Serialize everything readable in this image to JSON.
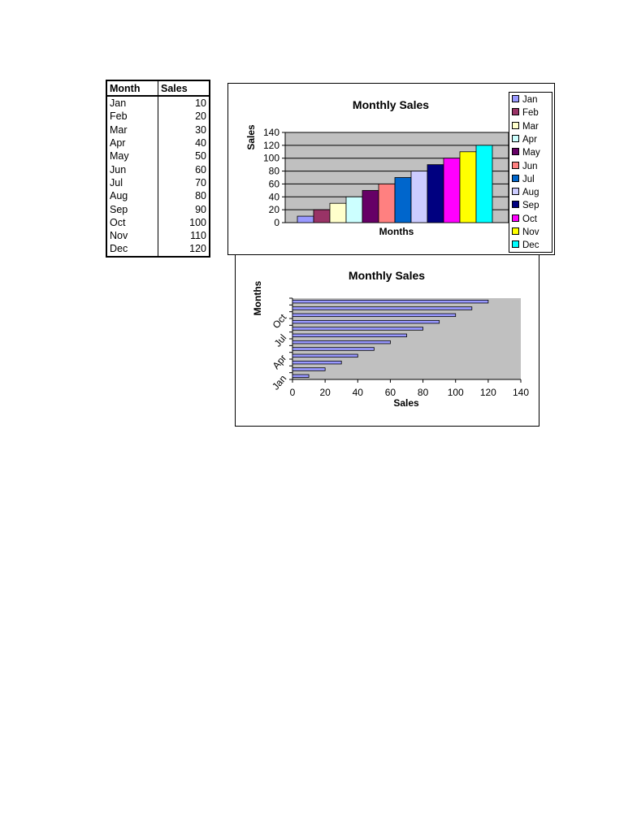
{
  "table": {
    "headers": [
      "Month",
      "Sales"
    ],
    "rows": [
      [
        "Jan",
        "10"
      ],
      [
        "Feb",
        "20"
      ],
      [
        "Mar",
        "30"
      ],
      [
        "Apr",
        "40"
      ],
      [
        "May",
        "50"
      ],
      [
        "Jun",
        "60"
      ],
      [
        "Jul",
        "70"
      ],
      [
        "Aug",
        "80"
      ],
      [
        "Sep",
        "90"
      ],
      [
        "Oct",
        "100"
      ],
      [
        "Nov",
        "110"
      ],
      [
        "Dec",
        "120"
      ]
    ]
  },
  "chart_data": [
    {
      "type": "bar",
      "orientation": "vertical",
      "title": "Monthly Sales",
      "xlabel": "Months",
      "ylabel": "Sales",
      "categories": [
        "Jan",
        "Feb",
        "Mar",
        "Apr",
        "May",
        "Jun",
        "Jul",
        "Aug",
        "Sep",
        "Oct",
        "Nov",
        "Dec"
      ],
      "values": [
        10,
        20,
        30,
        40,
        50,
        60,
        70,
        80,
        90,
        100,
        110,
        120
      ],
      "ylim": [
        0,
        140
      ],
      "yticks": [
        0,
        20,
        40,
        60,
        80,
        100,
        120,
        140
      ],
      "grid": true,
      "plot_background": "#c0c0c0",
      "legend": "right",
      "colors": [
        "#9999ff",
        "#993366",
        "#ffffcc",
        "#ccffff",
        "#660066",
        "#ff8080",
        "#0066cc",
        "#ccccff",
        "#000080",
        "#ff00ff",
        "#ffff00",
        "#00ffff"
      ]
    },
    {
      "type": "bar",
      "orientation": "horizontal",
      "title": "Monthly Sales",
      "xlabel": "Sales",
      "ylabel": "Months",
      "categories": [
        "Jan",
        "Feb",
        "Mar",
        "Apr",
        "May",
        "Jun",
        "Jul",
        "Aug",
        "Sep",
        "Oct",
        "Nov",
        "Dec"
      ],
      "values": [
        10,
        20,
        30,
        40,
        50,
        60,
        70,
        80,
        90,
        100,
        110,
        120
      ],
      "xlim": [
        0,
        140
      ],
      "xticks": [
        0,
        20,
        40,
        60,
        80,
        100,
        120,
        140
      ],
      "ytick_labels": [
        "Jan",
        "Apr",
        "Jul",
        "Oct"
      ],
      "grid": false,
      "plot_background": "#c0c0c0",
      "bar_color": "#9999ff"
    }
  ]
}
